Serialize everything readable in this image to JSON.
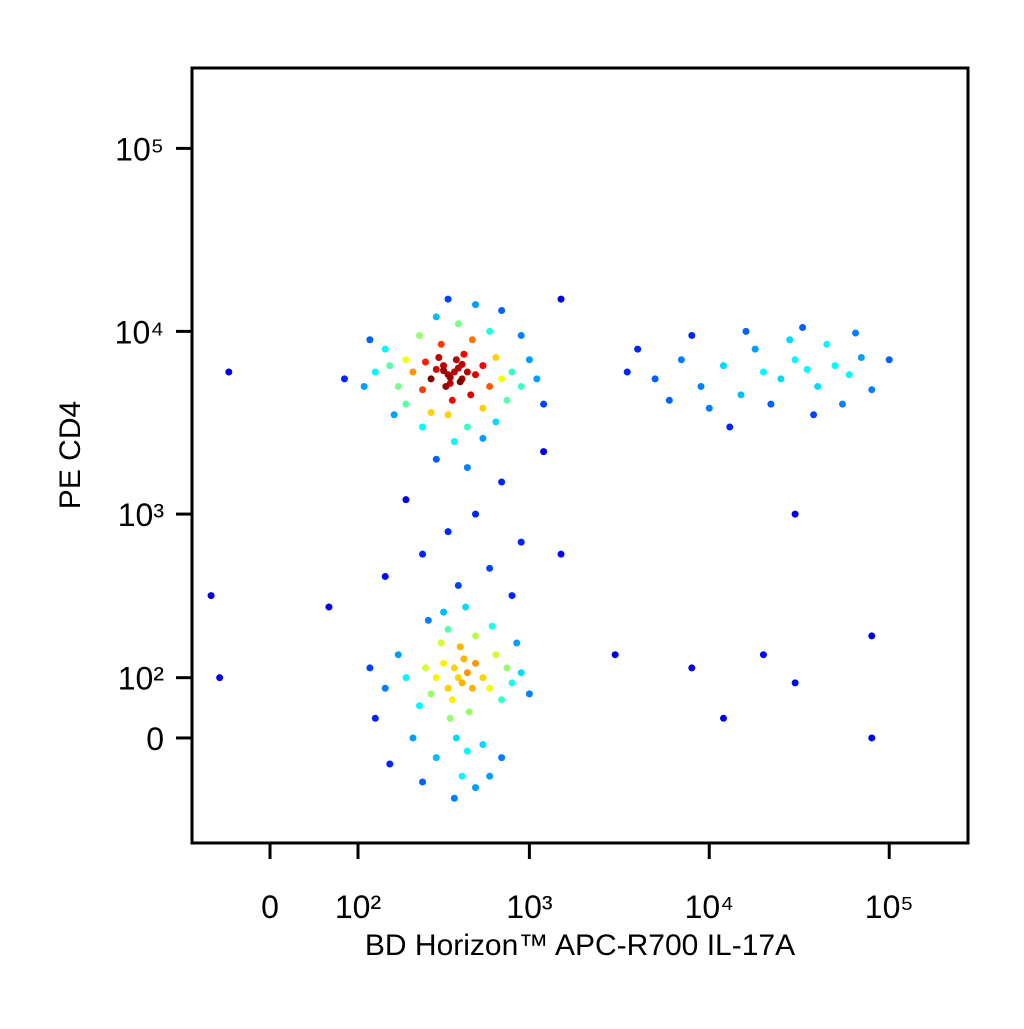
{
  "chart_data": {
    "type": "scatter",
    "x_label": "BD Horizon™ APC-R700 IL-17A",
    "y_label": "PE CD4",
    "x_scale": "biexponential",
    "y_scale": "biexponential",
    "color_by": "density",
    "xlim": [
      -85,
      274000
    ],
    "ylim": [
      -209,
      275000
    ],
    "xticks": [
      0,
      {
        "value": 100,
        "label": "10²"
      },
      {
        "value": 1000,
        "label": "10³"
      },
      {
        "value": 10000,
        "label": "10⁴"
      },
      {
        "value": 100000,
        "label": "10⁵"
      }
    ],
    "yticks": [
      0,
      {
        "value": 100,
        "label": "10²"
      },
      {
        "value": 1000,
        "label": "10³"
      },
      {
        "value": 10000,
        "label": "10⁴"
      },
      {
        "value": 100000,
        "label": "10⁵"
      }
    ],
    "x": [
      380,
      350,
      400,
      420,
      330,
      360,
      450,
      300,
      390,
      340,
      280,
      500,
      430,
      310,
      260,
      550,
      470,
      370,
      250,
      600,
      220,
      200,
      650,
      700,
      320,
      480,
      240,
      180,
      160,
      800,
      350,
      550,
      280,
      750,
      900,
      150,
      600,
      400,
      300,
      200,
      130,
      1000,
      1100,
      450,
      650,
      250,
      500,
      350,
      700,
      120,
      1200,
      900,
      170,
      380,
      550,
      110,
      420,
      360,
      330,
      410,
      400,
      380,
      420,
      350,
      450,
      370,
      430,
      330,
      480,
      300,
      360,
      500,
      410,
      280,
      550,
      320,
      460,
      260,
      600,
      390,
      240,
      650,
      350,
      500,
      200,
      700,
      300,
      450,
      180,
      750,
      420,
      550,
      220,
      800,
      150,
      270,
      620,
      380,
      900,
      130,
      500,
      160,
      1000,
      330,
      700,
      120,
      440,
      600,
      250,
      850,
      3500,
      5000,
      7000,
      9000,
      12000,
      15000,
      18000,
      20000,
      25000,
      30000,
      35000,
      40000,
      45000,
      50000,
      60000,
      70000,
      80000,
      22000,
      28000,
      10000,
      6000,
      4000,
      16000,
      33000,
      55000,
      100000,
      13000,
      38000,
      8000,
      65000,
      500,
      350,
      700,
      250,
      450,
      900,
      300,
      600,
      200,
      1500,
      400,
      800,
      1200,
      150,
      3000,
      8000,
      20000,
      30000,
      80000,
      60,
      80,
      -40,
      -60,
      -50,
      1500,
      30000,
      80000,
      12000
    ],
    "values": [
      6000,
      5800,
      6300,
      5500,
      6500,
      5200,
      6000,
      6200,
      7000,
      5000,
      5500,
      5800,
      7500,
      7200,
      6800,
      6500,
      4500,
      4200,
      4800,
      5000,
      6000,
      7000,
      7200,
      5500,
      8500,
      9000,
      9500,
      5000,
      6500,
      6000,
      3500,
      3800,
      3600,
      4200,
      5000,
      8000,
      10000,
      11000,
      12000,
      4000,
      6000,
      7000,
      5500,
      3000,
      3200,
      3000,
      14000,
      15000,
      13000,
      9000,
      4000,
      9500,
      3500,
      2500,
      2600,
      5000,
      6600,
      5600,
      6100,
      5300,
      100,
      120,
      90,
      80,
      110,
      60,
      140,
      130,
      80,
      100,
      30,
      130,
      170,
      70,
      100,
      180,
      40,
      120,
      80,
      0,
      50,
      150,
      220,
      200,
      100,
      60,
      -30,
      -20,
      150,
      120,
      -60,
      -10,
      0,
      90,
      80,
      250,
      230,
      -100,
      110,
      30,
      -80,
      -40,
      70,
      280,
      -30,
      120,
      300,
      -60,
      -70,
      180,
      6000,
      5500,
      7000,
      5000,
      6500,
      4500,
      8000,
      6000,
      5500,
      7000,
      6200,
      5000,
      8500,
      6500,
      5800,
      7200,
      4800,
      4000,
      9000,
      3800,
      4200,
      8000,
      10000,
      10500,
      4000,
      7000,
      3000,
      3500,
      9500,
      9800,
      1000,
      800,
      1500,
      600,
      1800,
      700,
      2000,
      500,
      1200,
      600,
      400,
      350,
      2200,
      450,
      150,
      120,
      150,
      90,
      200,
      300,
      5500,
      6000,
      350,
      100,
      15000,
      1000,
      0,
      30
    ]
  }
}
